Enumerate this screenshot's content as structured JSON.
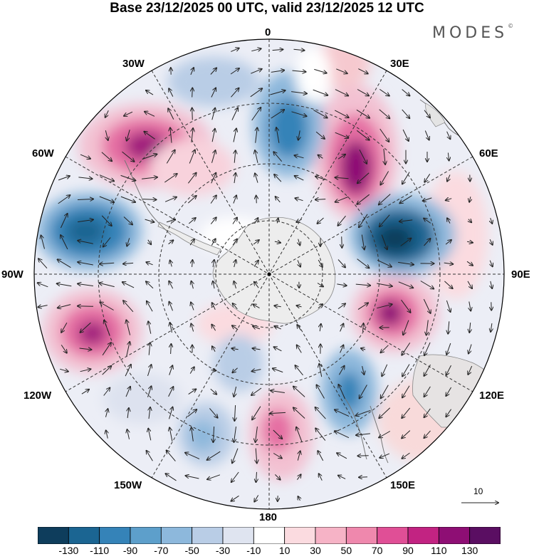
{
  "header": {
    "title": "Base 23/12/2025 00 UTC, valid 23/12/2025 12 UTC",
    "brand": "MODES",
    "brand_mark": "©"
  },
  "map": {
    "projection": "South polar stereographic",
    "longitude_labels": {
      "top": "0",
      "top_right": "30E",
      "right_upper": "60E",
      "right": "90E",
      "right_lower": "120E",
      "bottom_right": "150E",
      "bottom": "180",
      "bottom_left": "150W",
      "left_lower": "120W",
      "left": "90W",
      "left_upper": "60W",
      "top_left": "30W"
    },
    "reference_vector": "10"
  },
  "colorbar": {
    "colors": [
      "#0e3d5c",
      "#1b6592",
      "#3583b8",
      "#5d9fcb",
      "#8db8dc",
      "#b9cde6",
      "#dfe4f0",
      "#ffffff",
      "#fbdbe0",
      "#f6b3c6",
      "#ef88ad",
      "#e04f96",
      "#c22382",
      "#8e0e74",
      "#5a0e62"
    ],
    "labels": [
      "-130",
      "-110",
      "-90",
      "-70",
      "-50",
      "-30",
      "-10",
      "10",
      "30",
      "50",
      "70",
      "90",
      "110",
      "130"
    ]
  }
}
